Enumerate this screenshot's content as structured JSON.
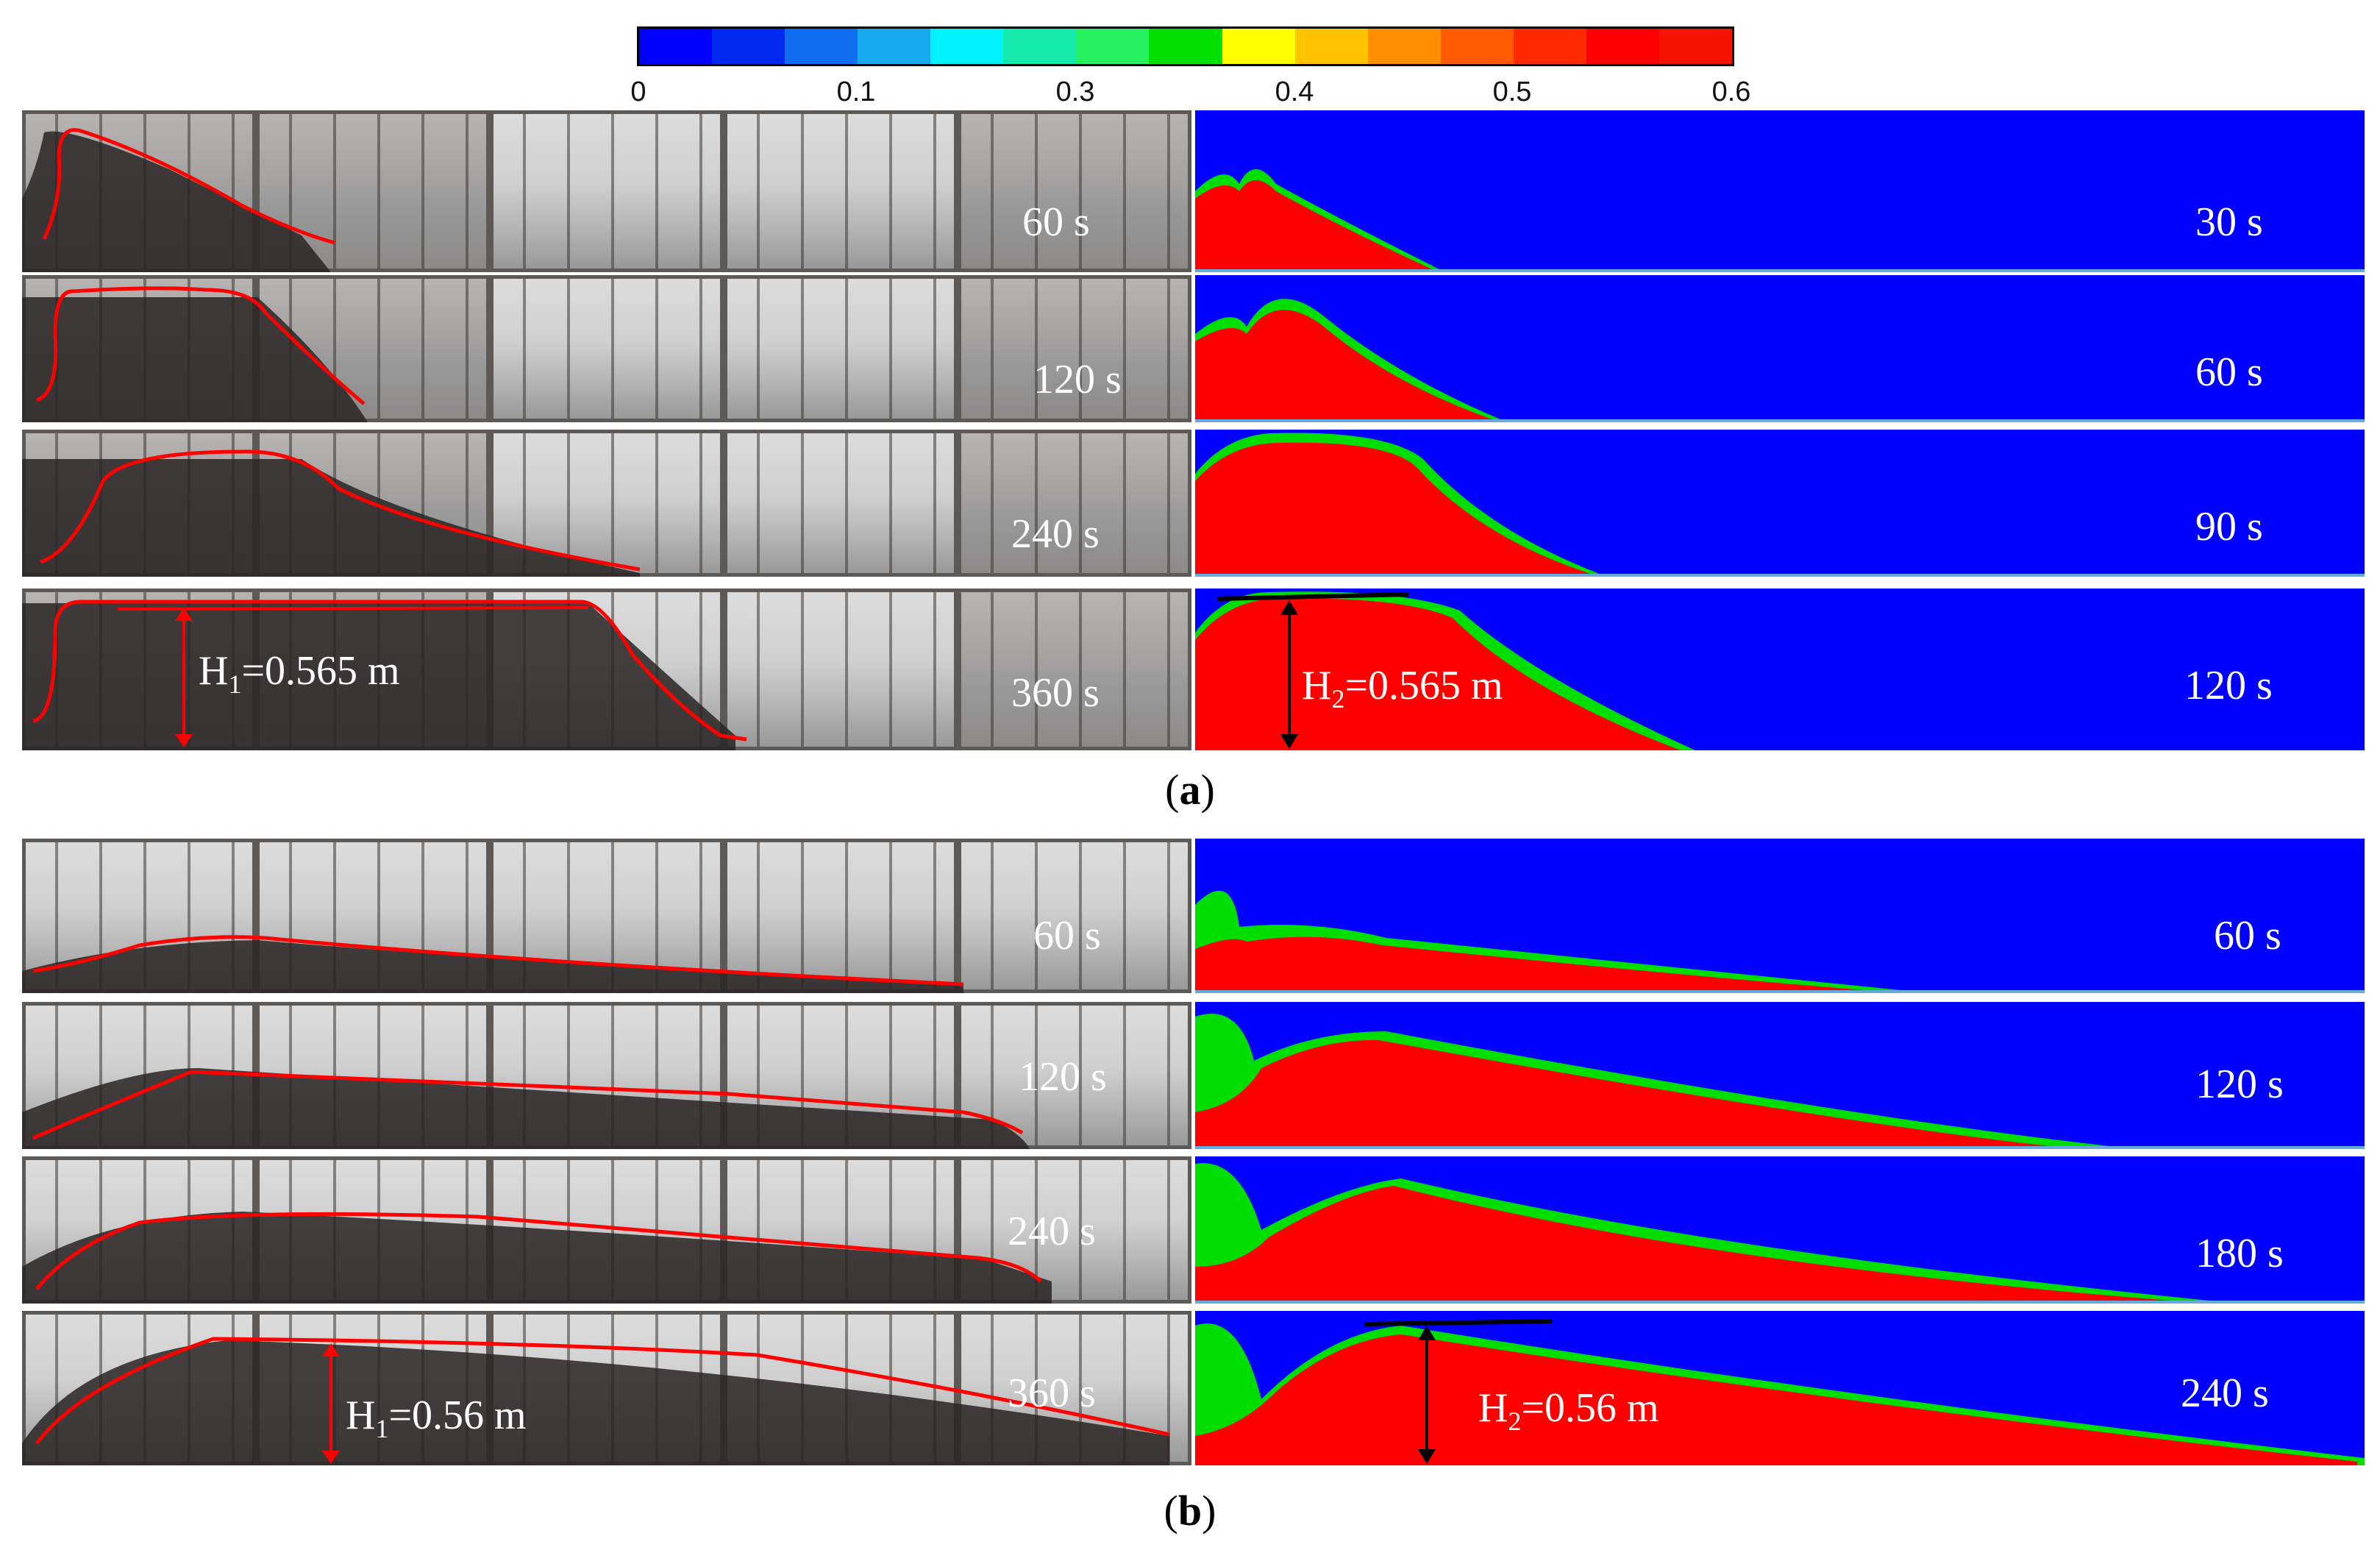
{
  "colorbar": {
    "colors": [
      "#0000ff",
      "#0029f0",
      "#0f6ff0",
      "#17a8ee",
      "#00f2ff",
      "#14e8aa",
      "#25f25e",
      "#00e000",
      "#ffff00",
      "#ffc400",
      "#ff8e00",
      "#ff5a00",
      "#ff2a00",
      "#ff0000",
      "#f21400"
    ],
    "ticks": [
      "0",
      "0.1",
      "0.3",
      "0.4",
      "0.5",
      "0.6"
    ]
  },
  "panel_a": {
    "exp_times": [
      "60 s",
      "120 s",
      "240 s",
      "360 s"
    ],
    "sim_times": [
      "30 s",
      "60 s",
      "90 s",
      "120 s"
    ],
    "h1": "H1=0.565 m",
    "h1_main": "H",
    "h1_sub": "1",
    "h1_rest": "=0.565 m",
    "h2_main": "H",
    "h2_sub": "2",
    "h2_rest": "=0.565 m",
    "caption_open": "(",
    "caption_letter": "a",
    "caption_close": ")"
  },
  "panel_b": {
    "exp_times": [
      "60 s",
      "120 s",
      "240 s",
      "360 s"
    ],
    "sim_times": [
      "60 s",
      "120 s",
      "180 s",
      "240 s"
    ],
    "h1_main": "H",
    "h1_sub": "1",
    "h1_rest": "=0.56 m",
    "h2_main": "H",
    "h2_sub": "2",
    "h2_rest": "=0.56 m",
    "caption_open": "(",
    "caption_letter": "b",
    "caption_close": ")"
  },
  "colors": {
    "water": "#0000ff",
    "sediment": "#ff0000",
    "curve": "#ff0000"
  }
}
